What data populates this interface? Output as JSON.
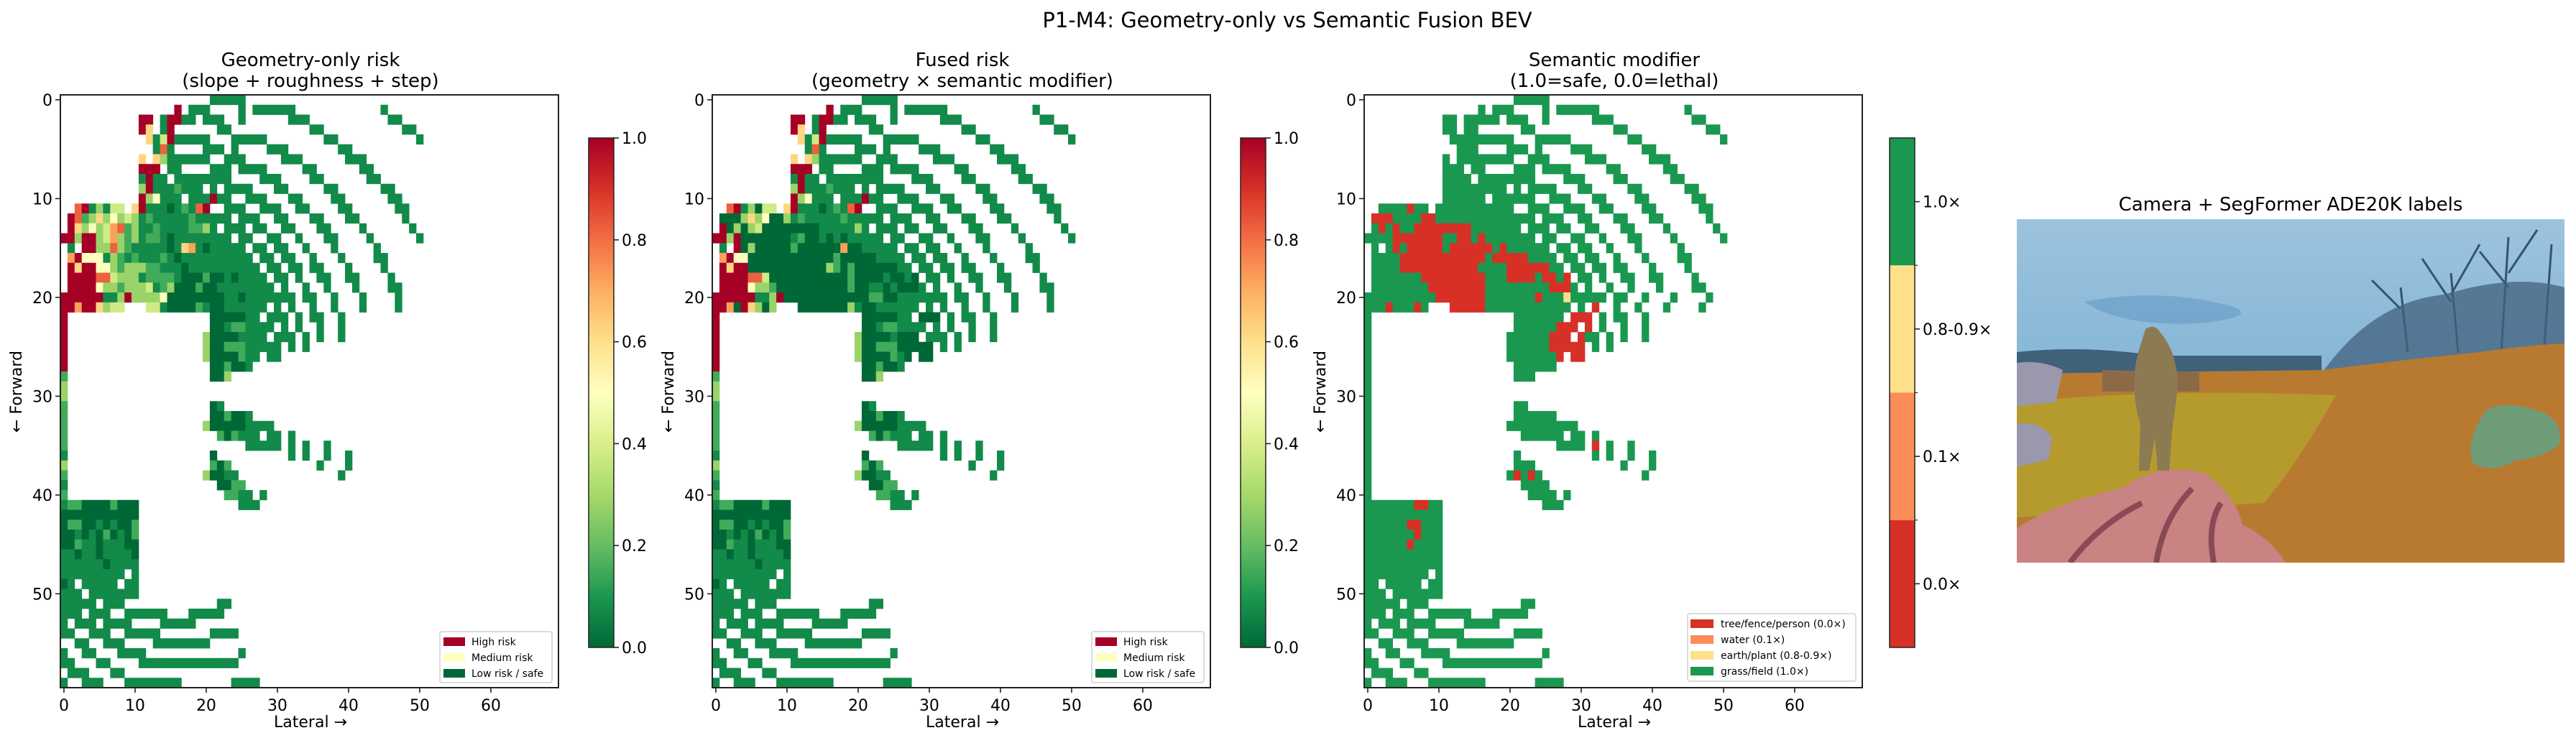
{
  "figure": {
    "title": "P1-M4: Geometry-only vs Semantic Fusion BEV"
  },
  "chart_data": [
    {
      "type": "heatmap",
      "title_line1": "Geometry-only risk",
      "title_line2": "(slope + roughness + step)",
      "xlabel": "Lateral →",
      "ylabel": "← Forward",
      "xticks": [
        "0",
        "10",
        "20",
        "30",
        "40",
        "50",
        "60"
      ],
      "yticks": [
        "0",
        "10",
        "20",
        "30",
        "40",
        "50"
      ],
      "xlim": [
        -0.5,
        69.5
      ],
      "ylim": [
        59.5,
        -0.5
      ],
      "colormap": "RdYlGn_r",
      "vmin": 0,
      "vmax": 1,
      "colorbar_ticks": [
        "0.0",
        "0.2",
        "0.4",
        "0.6",
        "0.8",
        "1.0"
      ],
      "legend_position": "lower right",
      "legend": [
        {
          "label": "High risk",
          "color": "#a50026"
        },
        {
          "label": "Medium risk",
          "color": "#ffffbf"
        },
        {
          "label": "Low risk / safe",
          "color": "#006837"
        }
      ],
      "level_values": {
        "0": 0.0,
        "1": 0.07,
        "2": 0.15,
        "3": 0.28,
        "4": 0.38,
        "5": 0.5,
        "6": 0.62,
        "7": 0.72,
        "8": 0.82,
        "9": 1.0
      },
      "grid": [
        ".....................11111",
        "................9.111....1.111111............1",
        "...........99.19911.111..1......111...........11",
        "...........96.19......11...........11...........11",
        "............614911111...11111........11...........1",
        ".............181....111.1....111.......11",
        "...........6.63111111..111.....111......111",
        "...........999.11....111.1111.....11......11",
        "...........1911.11111111....111....11......11",
        "...........391112111.1.1111...11.....11......11",
        "...........935111.111911..111...11....11......11",
        "..8913144.69111012189..111..111..11....11......11",
        ".98236353431211111211111.111..11...11...11......1",
        ".963534782311211112231.111.11..11...11....1......1",
        "993993473231221011111111.11..11..1...11....1......1",
        ".1.99338321111101671011111.11.11..1...1.....1",
        ".79555132121112101111111111.11.11..1...1....11",
        ".969955323332211101111111111.11.11.11...1....1",
        ".9999884333122221000200101111.11.1..11..11....1",
        ".99995332333412300020011111111.1..1..1...1....11",
        "999999113933335000000001101111111.11..1...1....1",
        "997996344...44100002100111111.1.1..1..1...1....1",
        "9....................0000011.111.1.11..1",
        "9....................001221111.1.1..1..1",
        "9...................300001111.111.1.1..1",
        "9...................30022211111.1.1",
        "9...................30000211.11",
        "9....................002001",
        "2....................003",
        "3",
        "3",
        "2....................01",
        "2....................002001",
        "2...................3000001111",
        "2.....................202111.11.1",
        "2.........................11111.1.1..1",
        "1....................0..........1.1..1..1",
        "3....................202............1...1",
        "2...................30011..............1",
        "1.....................0022",
        "2......................2211.1",
        "12200002000..............111",
        "00000000000",
        "02200101002",
        "00101020102",
        "00211011100",
        "11011011110",
        "11111101111",
        "111111111.1",
        "01.11111.11",
        "111.1111111",
        "11111.111.............11",
        "111.111..111111...11111",
        "1.111.1111....11111",
        "11..111..11111.......1111",
        "..11..111....11111111",
        "1..11...1111.............1",
        "11...11....11111111111111",
        ".111...11",
        "1..111...11111111.......1111"
      ]
    },
    {
      "type": "heatmap",
      "title_line1": "Fused risk",
      "title_line2": "(geometry × semantic modifier)",
      "xlabel": "Lateral →",
      "ylabel": "← Forward",
      "xticks": [
        "0",
        "10",
        "20",
        "30",
        "40",
        "50",
        "60"
      ],
      "yticks": [
        "0",
        "10",
        "20",
        "30",
        "40",
        "50"
      ],
      "xlim": [
        -0.5,
        69.5
      ],
      "ylim": [
        59.5,
        -0.5
      ],
      "colormap": "RdYlGn_r",
      "vmin": 0,
      "vmax": 1,
      "colorbar_ticks": [
        "0.0",
        "0.2",
        "0.4",
        "0.6",
        "0.8",
        "1.0"
      ],
      "legend_position": "lower right",
      "legend": [
        {
          "label": "High risk",
          "color": "#a50026"
        },
        {
          "label": "Medium risk",
          "color": "#ffffbf"
        },
        {
          "label": "Low risk / safe",
          "color": "#006837"
        }
      ],
      "level_values": {
        "0": 0.0,
        "1": 0.07,
        "2": 0.15,
        "3": 0.28,
        "4": 0.38,
        "5": 0.5,
        "6": 0.62,
        "7": 0.72,
        "8": 0.82,
        "9": 1.0
      },
      "grid": [
        ".....................11111",
        "................9.111....1.111111............1",
        "...........99.19911.111..1......111...........11",
        "...........96.19......11...........11...........11",
        "............614911111...11111........11...........1",
        ".............181....111.1....111.......11",
        "...........6.63111111..111.....111......111",
        "...........999.11....111.1111.....11......11",
        "...........1911.11111111....111....11......11",
        "...........391112111.1.1111...11.....11......11",
        "...........935111.111911..111...11....11......11",
        "..8913044.69111012189..111..111..11....11......11",
        ".00036350031211111211111.111..11...11...11......1",
        ".903034000000001111131.111.11..11...11....1......1",
        "993900000001200101011111.11..11..1...11....1......1",
        ".1.90300000200000070011111.11.11..1...1.....1",
        ".79550000000000002000001111.11.11..1...1....11",
        ".969900000000000320200000011.11.11.11...1....1",
        ".9999884000000000002000010010.11.1..11..11....1",
        ".99995332000000000020011010001.1..1..1...1....11",
        "999999113900000000000022001111111.11..1...1....1",
        "997096303...00000003100111111.1.1..1..1...1....1",
        "9....................0000011.000.1.11..1",
        "9....................001221111.1.1..1..1",
        "9...................300001000.111.1.1..1",
        "9...................30022200000.1.1",
        "9...................30000210.00",
        "9....................002001",
        "2....................003",
        "3",
        "3",
        "2....................01",
        "2....................002001",
        "2...................3000001111",
        "2.....................202111.11.1",
        "2.........................11111.1.1..1",
        "1....................0..........1.1..1..1",
        "3....................202............1...1",
        "2...................30011..............1",
        "1.....................0022",
        "2......................2211.1",
        "12200002000..............111",
        "00000000000",
        "02200101002",
        "00101020102",
        "00211011100",
        "11011011110",
        "11111101111",
        "111111111.1",
        "01.11111.11",
        "111.1111111",
        "11111.111.............11",
        "111.111..111111...11111",
        "1.111.1111....11111",
        "11..111..11111.......1111",
        "..11..111....11111111",
        "1..11...1111.............1",
        "11...11....11111111111111",
        ".111...11",
        "1..111...11111111.......1111"
      ]
    },
    {
      "type": "heatmap",
      "title_line1": "Semantic modifier",
      "title_line2": "(1.0=safe, 0.0=lethal)",
      "xlabel": "Lateral →",
      "ylabel": "← Forward",
      "xticks": [
        "0",
        "10",
        "20",
        "30",
        "40",
        "50",
        "60"
      ],
      "yticks": [
        "0",
        "10",
        "20",
        "30",
        "40",
        "50"
      ],
      "xlim": [
        -0.5,
        69.5
      ],
      "ylim": [
        59.5,
        -0.5
      ],
      "colorbar_labels": [
        "0.0×",
        "0.1×",
        "0.8-0.9×",
        "1.0×"
      ],
      "legend_position": "lower right",
      "categories": {
        "r": {
          "label": "tree/fence/person (0.0×)",
          "color": "#d73027",
          "value": 0.0
        },
        "o": {
          "label": "water (0.1×)",
          "color": "#fc8d59",
          "value": 0.1
        },
        "y": {
          "label": "earth/plant (0.8-0.9×)",
          "color": "#fee08b",
          "value": 0.85
        },
        "g": {
          "label": "grass/field (1.0×)",
          "color": "#1a9850",
          "value": 1.0
        }
      },
      "legend_order": [
        "r",
        "o",
        "y",
        "g"
      ],
      "grid": [
        ".....................ggggg",
        "................g.ggg....g.gggggg............g",
        "...........gg.ggggg.ggg..g......ggg...........gg",
        "...........gg.gg......gg...........gg...........gg",
        "............ggggggggg...ggggg........gg...........g",
        ".............ggg....ggg.g....ggg.......gg",
        "...........g.gggggggg..ggg.....ggg......ggg",
        "...........ggg.gg....ggg.gggg.....gg......gg",
        "...........gggg.gggggggg....ggg....gg......gg",
        "...........ggggggggg.g.gggg...gg.....gg......gg",
        "...........gggggg.gggggg..ggg...gg....gg......gg",
        "..ggggrgg.ggggggggggg..ggg..ggg..gg....gg......gg",
        ".rrrggggrrgggggggggggggg.ggg..gg...gg...gg......g",
        ".grgrggrrrrrrrrggggggg.ggg.gg..gg...gg....g......g",
        "ggggrrrrrrrggrrgrggggggg.gg..gg..g...gg....g......g",
        ".g.grgrrrrrgrrrrrrgrgggggg.gg.gg..g...g.....g",
        ".ggggrrrrrrrrrrrrgrrrrrgggg.gg.gg..g...g....gg",
        ".ggggrrrrrrrrrrrggggrrrrrrgg.gg.gg.gg...g....g",
        ".gggggggrrrrrrrrrgggrrrrgrrgr.gg.g..gg..gg....g",
        ".ggggggggrrrrrrrrgggggggggrrrg.g..g..g...g....gg",
        "ggggggggggrrrrrrrgggggggrgggyggggg.gg..g...g....g",
        "gggrgggrg...rrrrrgggggggggggg.g.r..g..g...g....g",
        "g....................ggggggg.rrr.g.gg..g",
        "g....................ggggggrrr.r.g..g..g",
        "g...................ggggggrrr.rgg.g.g..g",
        "g...................ggggggrrrrr.g.g",
        "g...................gggggggr.rr",
        "g....................gggggg",
        "g....................ggg",
        "g",
        "g",
        "g....................gg",
        "g....................gggggg",
        "g...................gggggggggg",
        "g.....................gggggg.gg.g",
        "g..........................gggg.r.g..g",
        "g....................g..........g.g..g..g",
        "g....................ggg............g...g",
        "g...................grgrg..............g",
        "g.....................gggg",
        "g......................gggg.g",
        "gggggggrrgg..............ggg",
        "ggggggggggg",
        "ggggggrrggg",
        "gggggggrggg",
        "ggggggrgggg",
        "ggggggggggg",
        "ggggggggggg",
        "ggggggggg.g",
        "gg.ggggg.gg",
        "ggg.ggggggg",
        "ggggg.ggg.............gg",
        "ggg.ggg..gggggg...ggggg",
        "g.ggg.gggg....ggggg",
        "gg..ggg..ggggg.......gggg",
        "..gg..ggg....gggggggg",
        "g..gg...gggg.............g",
        "gg...gg....gggggggggggggg",
        ".ggg...gg",
        "g..ggg...gggggggg.......gggg"
      ]
    },
    {
      "type": "image",
      "title": "Camera + SegFormer ADE20K labels",
      "overlay_colors": {
        "sky": "#8fbbd8",
        "trees": "#3d5f7a",
        "earth": "#b87a30",
        "grass": "#b59a2e",
        "mud": "#c98383",
        "person": "#8c7a52",
        "plant": "#6f9c78",
        "rock": "#9a98ac"
      }
    }
  ]
}
